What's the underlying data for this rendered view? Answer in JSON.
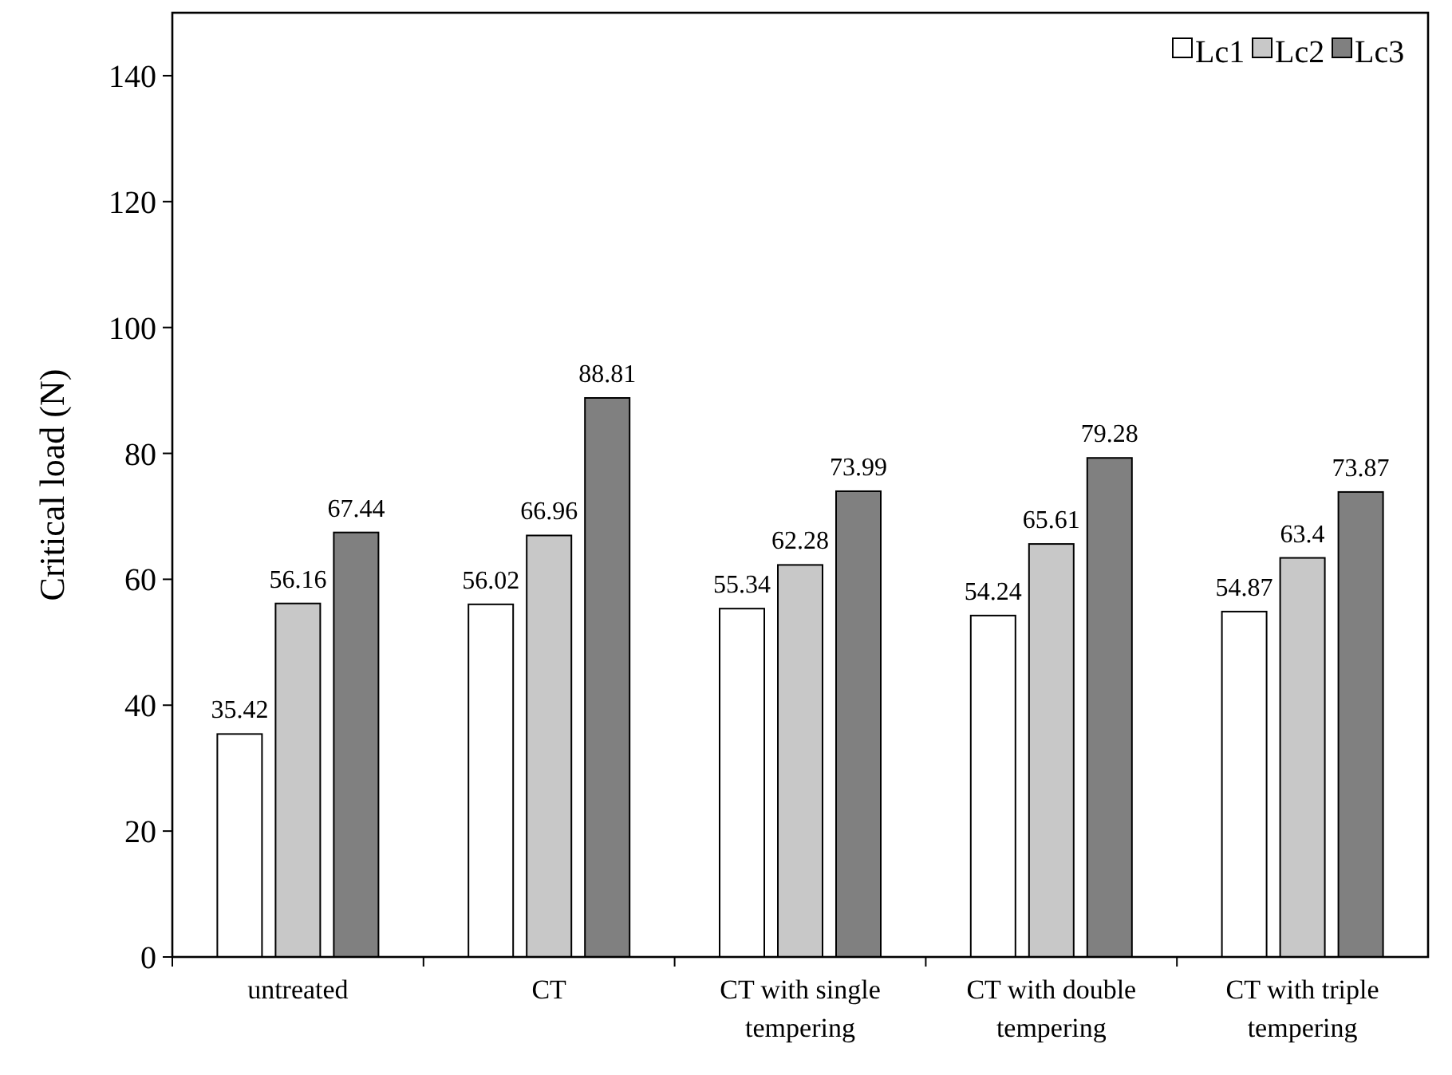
{
  "chart_data": {
    "type": "bar",
    "ylabel": "Critical load  (N)",
    "categories": [
      "untreated",
      "CT",
      "CT with single tempering",
      "CT with double tempering",
      "CT with triple tempering"
    ],
    "series": [
      {
        "name": "Lc1",
        "color": "#ffffff",
        "values": [
          35.42,
          56.02,
          55.34,
          54.24,
          54.87
        ]
      },
      {
        "name": "Lc2",
        "color": "#c8c8c8",
        "values": [
          56.16,
          66.96,
          62.28,
          65.61,
          63.4
        ]
      },
      {
        "name": "Lc3",
        "color": "#808080",
        "values": [
          67.44,
          88.81,
          73.99,
          79.28,
          73.87
        ]
      }
    ],
    "ylim": [
      0,
      150
    ],
    "yticks": [
      0,
      20,
      40,
      60,
      80,
      100,
      120,
      140
    ],
    "data_labels": true,
    "legend": "top right",
    "grid": false
  }
}
